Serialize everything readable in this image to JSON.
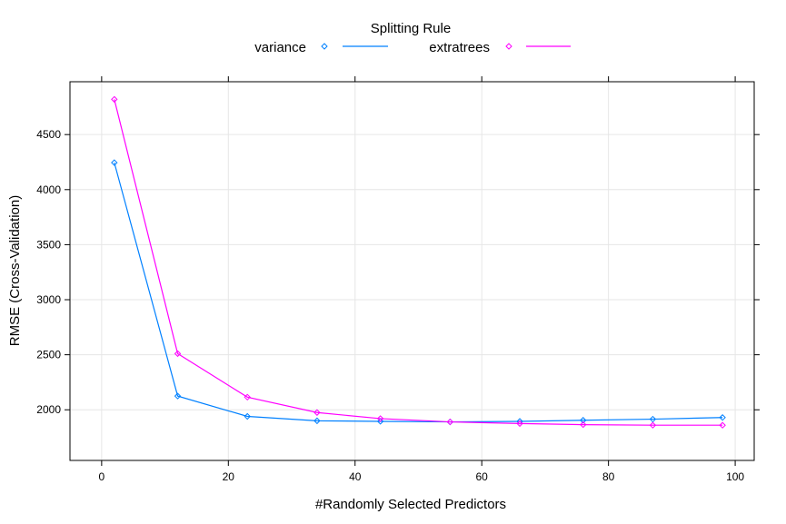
{
  "chart_data": {
    "type": "line",
    "title": "",
    "xlabel": "#Randomly Selected Predictors",
    "ylabel": "RMSE (Cross-Validation)",
    "xlim": [
      -5,
      103
    ],
    "ylim": [
      1540,
      4980
    ],
    "xticks": [
      0,
      20,
      40,
      60,
      80,
      100
    ],
    "yticks": [
      2000,
      2500,
      3000,
      3500,
      4000,
      4500
    ],
    "grid": true,
    "legend": {
      "title": "Splitting Rule",
      "position": "top",
      "entries": [
        "variance",
        "extratrees"
      ]
    },
    "x": [
      2,
      12,
      23,
      34,
      44,
      55,
      66,
      76,
      87,
      98
    ],
    "series": [
      {
        "name": "variance",
        "color": "#0080ff",
        "marker": "diamond",
        "values": [
          4245,
          2125,
          1940,
          1900,
          1895,
          1890,
          1895,
          1905,
          1915,
          1930
        ]
      },
      {
        "name": "extratrees",
        "color": "#ff00ff",
        "marker": "diamond",
        "values": [
          4820,
          2510,
          2115,
          1975,
          1920,
          1890,
          1875,
          1865,
          1860,
          1860
        ]
      }
    ]
  },
  "colors": {
    "grid": "#e6e6e6",
    "axis": "#000000",
    "background": "#ffffff"
  }
}
